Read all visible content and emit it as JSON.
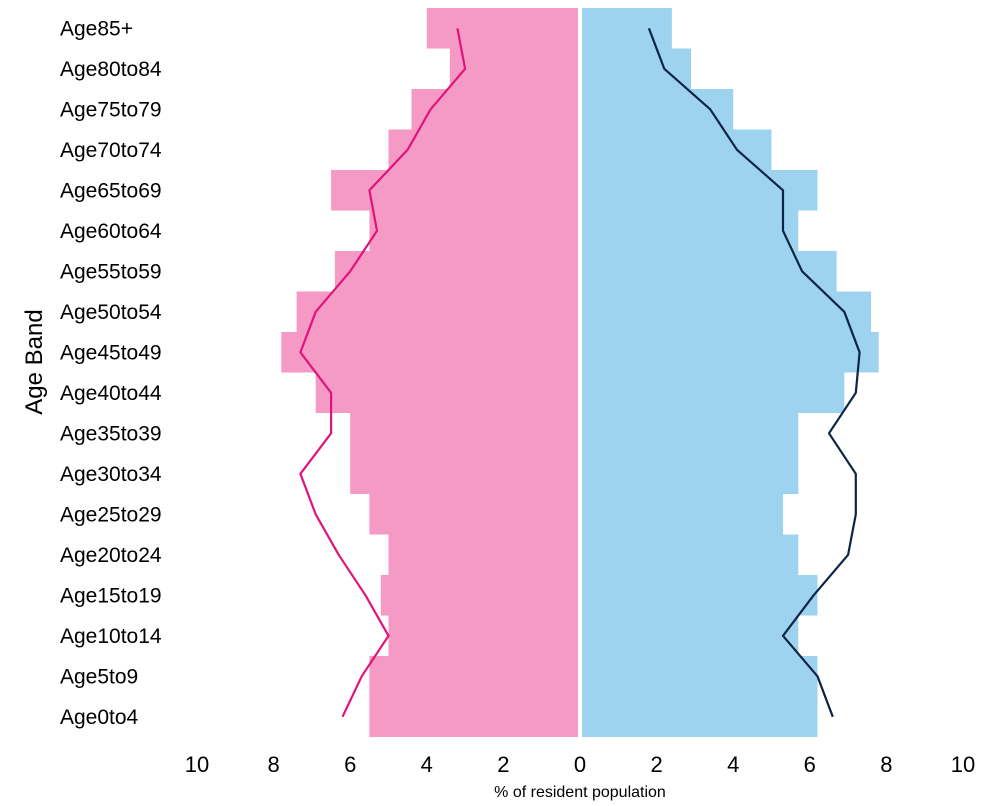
{
  "chart_data": {
    "type": "bar",
    "orientation": "horizontal-pyramid",
    "categories": [
      "Age0to4",
      "Age5to9",
      "Age10to14",
      "Age15to19",
      "Age20to24",
      "Age25to29",
      "Age30to34",
      "Age35to39",
      "Age40to44",
      "Age45to49",
      "Age50to54",
      "Age55to59",
      "Age60to64",
      "Age65to69",
      "Age70to74",
      "Age75to79",
      "Age80to84",
      "Age85+"
    ],
    "series": [
      {
        "side": "left",
        "color": "#F49AC4",
        "kind": "bar",
        "values": [
          5.5,
          5.5,
          5.0,
          5.2,
          5.0,
          5.5,
          6.0,
          6.0,
          6.9,
          7.8,
          7.4,
          6.4,
          5.5,
          6.5,
          5.0,
          4.4,
          3.4,
          4.0
        ]
      },
      {
        "side": "right",
        "color": "#9DD3EF",
        "kind": "bar",
        "values": [
          6.2,
          6.2,
          5.7,
          6.2,
          5.7,
          5.3,
          5.7,
          5.7,
          6.9,
          7.8,
          7.6,
          6.7,
          5.7,
          6.2,
          5.0,
          4.0,
          2.9,
          2.4
        ]
      },
      {
        "side": "left",
        "color": "#E0147A",
        "kind": "line",
        "values": [
          6.2,
          5.7,
          5.0,
          5.6,
          6.3,
          6.9,
          7.3,
          6.5,
          6.5,
          7.3,
          6.9,
          6.0,
          5.3,
          5.5,
          4.5,
          3.9,
          3.0,
          3.2
        ]
      },
      {
        "side": "right",
        "color": "#0B2545",
        "kind": "line",
        "values": [
          6.6,
          6.2,
          5.3,
          6.1,
          7.0,
          7.2,
          7.2,
          6.5,
          7.2,
          7.3,
          6.9,
          5.8,
          5.3,
          5.3,
          4.1,
          3.4,
          2.2,
          1.8
        ]
      }
    ],
    "x_ticks": [
      "10",
      "8",
      "6",
      "4",
      "2",
      "0",
      "2",
      "4",
      "6",
      "8",
      "10"
    ],
    "xlim": [
      -10,
      10
    ],
    "xlabel": "% of resident population",
    "ylabel": "Age Band",
    "grid": false,
    "legend": "none"
  }
}
